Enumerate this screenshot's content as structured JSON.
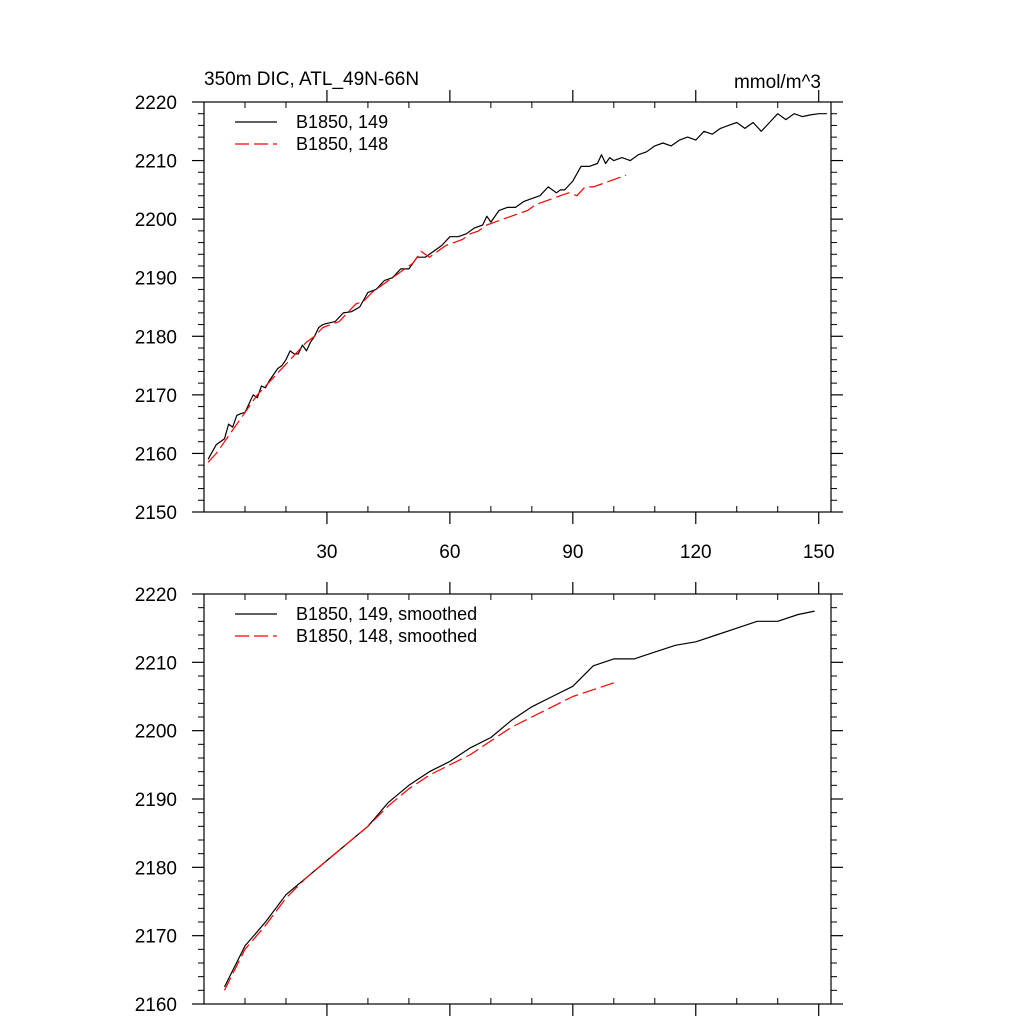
{
  "chart_data": [
    {
      "type": "line",
      "title": "350m DIC, ATL_49N-66N",
      "units": "mmol/m^3",
      "xlim": [
        0,
        153
      ],
      "ylim": [
        2150,
        2220
      ],
      "x_ticks": [
        30,
        60,
        90,
        120,
        150
      ],
      "x_tick_labels": [
        "30",
        "60",
        "90",
        "120",
        "150"
      ],
      "y_ticks": [
        2150,
        2160,
        2170,
        2180,
        2190,
        2200,
        2210,
        2220
      ],
      "y_tick_labels": [
        "2150",
        "2160",
        "2170",
        "2180",
        "2190",
        "2200",
        "2210",
        "2220"
      ],
      "legend_position": "top-left",
      "series": [
        {
          "name": "B1850, 149",
          "color": "#000000",
          "style": "solid",
          "x": [
            1,
            3,
            5,
            6,
            7,
            8,
            9,
            10,
            11,
            12,
            13,
            14,
            15,
            16,
            17,
            18,
            19,
            20,
            21,
            22,
            23,
            24,
            25,
            26,
            27,
            28,
            29,
            30,
            32,
            34,
            36,
            38,
            40,
            42,
            44,
            46,
            48,
            50,
            52,
            54,
            56,
            58,
            60,
            62,
            64,
            66,
            68,
            69,
            70,
            72,
            74,
            76,
            78,
            80,
            82,
            84,
            86,
            87,
            88,
            90,
            92,
            94,
            96,
            97,
            98,
            99,
            100,
            102,
            104,
            106,
            108,
            110,
            112,
            114,
            116,
            118,
            120,
            122,
            124,
            126,
            128,
            130,
            132,
            134,
            136,
            138,
            140,
            142,
            144,
            146,
            148,
            150,
            152
          ],
          "y": [
            2159,
            2161.5,
            2162.5,
            2165,
            2164.5,
            2166.5,
            2166.8,
            2167,
            2168.5,
            2170,
            2169.5,
            2171.5,
            2171.2,
            2172.5,
            2173.5,
            2174.5,
            2175,
            2176,
            2177.5,
            2177,
            2177,
            2178.5,
            2177.5,
            2179,
            2180,
            2181.5,
            2182,
            2182.2,
            2182.5,
            2184,
            2184.2,
            2185,
            2187.5,
            2188,
            2189.5,
            2190,
            2191.5,
            2191.5,
            2193.5,
            2193.5,
            2194.5,
            2195.5,
            2197,
            2197,
            2197.5,
            2198.5,
            2199,
            2200.5,
            2199.5,
            2201.5,
            2202,
            2202,
            2203,
            2203.5,
            2204,
            2205.5,
            2204.5,
            2205,
            2205,
            2206.5,
            2209,
            2209,
            2209.5,
            2211,
            2209.5,
            2210.5,
            2210,
            2210.5,
            2210,
            2211,
            2211.5,
            2212.5,
            2213,
            2212.5,
            2213.5,
            2214,
            2213.5,
            2215,
            2214.5,
            2215.5,
            2216,
            2216.5,
            2215.5,
            2216.5,
            2215,
            2216.5,
            2218,
            2217,
            2218,
            2217.5,
            2217.8,
            2218,
            2218
          ]
        },
        {
          "name": "B1850, 148",
          "color": "#ff0000",
          "style": "dashed",
          "x": [
            1,
            3,
            5,
            7,
            9,
            11,
            13,
            15,
            17,
            19,
            21,
            23,
            25,
            27,
            29,
            31,
            33,
            35,
            37,
            39,
            41,
            43,
            45,
            47,
            49,
            51,
            53,
            55,
            57,
            59,
            61,
            63,
            65,
            67,
            69,
            71,
            73,
            75,
            77,
            79,
            81,
            83,
            85,
            87,
            89,
            91,
            93,
            95,
            97,
            99,
            101,
            103
          ],
          "y": [
            2158.5,
            2160,
            2162,
            2164,
            2166,
            2168,
            2170,
            2171.5,
            2173,
            2174.5,
            2176,
            2177.5,
            2179,
            2180,
            2181.5,
            2182,
            2182.5,
            2184,
            2185.5,
            2186,
            2187.5,
            2188.5,
            2189.5,
            2190.5,
            2191.5,
            2192.5,
            2194.5,
            2193.5,
            2194.5,
            2195.5,
            2196,
            2196.5,
            2197.5,
            2198,
            2199,
            2199.5,
            2200,
            2200.5,
            2201,
            2201.5,
            2202.5,
            2203,
            2203.5,
            2204,
            2204.5,
            2204,
            2205.5,
            2205.5,
            2206,
            2206.5,
            2207,
            2207.5
          ]
        }
      ]
    },
    {
      "type": "line",
      "xlim": [
        0,
        153
      ],
      "ylim": [
        2160,
        2220
      ],
      "x_ticks": [
        30,
        60,
        90,
        120,
        150
      ],
      "x_tick_labels": [],
      "y_ticks": [
        2160,
        2170,
        2180,
        2190,
        2200,
        2210,
        2220
      ],
      "y_tick_labels": [
        "2160",
        "2170",
        "2180",
        "2190",
        "2200",
        "2210",
        "2220"
      ],
      "legend_position": "top-left",
      "series": [
        {
          "name": "B1850, 149, smoothed",
          "color": "#000000",
          "style": "solid",
          "x": [
            5,
            10,
            15,
            20,
            25,
            30,
            35,
            40,
            45,
            50,
            55,
            60,
            65,
            70,
            75,
            80,
            85,
            90,
            95,
            100,
            105,
            110,
            115,
            120,
            125,
            130,
            135,
            140,
            145,
            149
          ],
          "y": [
            2162.5,
            2168.5,
            2172,
            2176,
            2178.5,
            2181,
            2183.5,
            2186,
            2189.5,
            2192,
            2194,
            2195.5,
            2197.5,
            2199,
            2201.5,
            2203.5,
            2205,
            2206.5,
            2209.5,
            2210.5,
            2210.5,
            2211.5,
            2212.5,
            2213,
            2214,
            2215,
            2216,
            2216,
            2217,
            2217.5
          ]
        },
        {
          "name": "B1850, 148, smoothed",
          "color": "#ff0000",
          "style": "dashed",
          "x": [
            5,
            10,
            15,
            20,
            25,
            30,
            35,
            40,
            45,
            50,
            55,
            60,
            65,
            70,
            75,
            80,
            85,
            90,
            95,
            100
          ],
          "y": [
            2162,
            2168,
            2171.5,
            2175.5,
            2178.5,
            2181,
            2183.5,
            2186,
            2189,
            2191.5,
            2193.5,
            2195,
            2196.5,
            2198.5,
            2200.5,
            2202,
            2203.5,
            2205,
            2206,
            2207
          ]
        }
      ]
    }
  ]
}
